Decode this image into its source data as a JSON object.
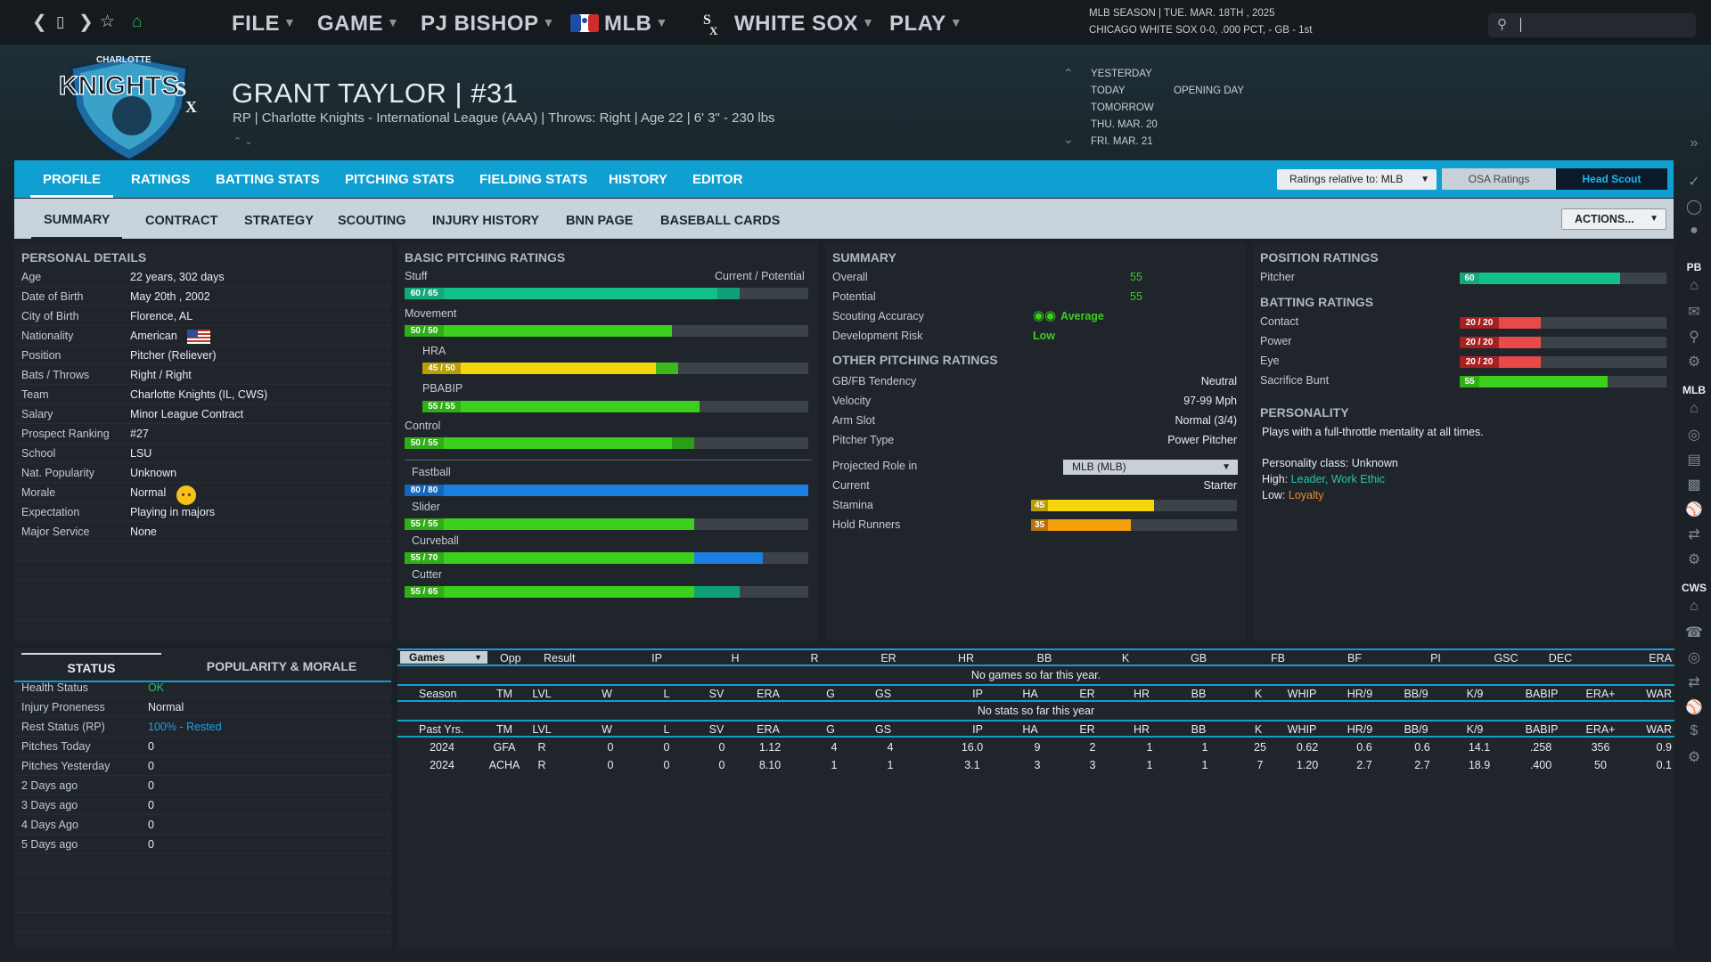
{
  "topbar": {
    "menus": [
      "FILE",
      "GAME",
      "PJ BISHOP",
      "MLB",
      "WHITE SOX",
      "PLAY"
    ],
    "season_line": "MLB SEASON  |  TUE. MAR. 18TH , 2025",
    "team_line": "CHICAGO WHITE SOX  0-0, .000 PCT, - GB - 1st",
    "search_value": ""
  },
  "header": {
    "name": "GRANT TAYLOR  |  #31",
    "sub": "RP | Charlotte Knights - International League (AAA)  |  Throws: Right  |  Age 22  |  6' 3\" - 230 lbs",
    "logo_text": "KNIGHTS",
    "logo_top": "CHARLOTTE"
  },
  "dates": [
    {
      "label": "YESTERDAY",
      "event": ""
    },
    {
      "label": "TODAY",
      "event": "OPENING DAY"
    },
    {
      "label": "TOMORROW",
      "event": ""
    },
    {
      "label": "THU. MAR. 20",
      "event": ""
    },
    {
      "label": "FRI. MAR. 21",
      "event": ""
    }
  ],
  "tabs": [
    "PROFILE",
    "RATINGS",
    "BATTING STATS",
    "PITCHING STATS",
    "FIELDING STATS",
    "HISTORY",
    "EDITOR"
  ],
  "ratings_relative": "Ratings relative to: MLB",
  "osa": "OSA Ratings",
  "head_scout": "Head Scout",
  "subtabs": [
    "SUMMARY",
    "CONTRACT",
    "STRATEGY",
    "SCOUTING",
    "INJURY HISTORY",
    "BNN PAGE",
    "BASEBALL CARDS"
  ],
  "actions": "ACTIONS...",
  "sidebar_labels": [
    "PB",
    "MLB",
    "CWS"
  ],
  "personal": {
    "title": "PERSONAL DETAILS",
    "rows": [
      {
        "label": "Age",
        "value": "22 years, 302 days"
      },
      {
        "label": "Date of Birth",
        "value": "May 20th , 2002"
      },
      {
        "label": "City of Birth",
        "value": "Florence, AL"
      },
      {
        "label": "Nationality",
        "value": "American"
      },
      {
        "label": "Position",
        "value": "Pitcher (Reliever)"
      },
      {
        "label": "Bats / Throws",
        "value": "Right / Right"
      },
      {
        "label": "Team",
        "value": "Charlotte Knights (IL, CWS)"
      },
      {
        "label": "Salary",
        "value": "Minor League Contract"
      },
      {
        "label": "Prospect Ranking",
        "value": "#27"
      },
      {
        "label": "School",
        "value": "LSU"
      },
      {
        "label": "Nat. Popularity",
        "value": "Unknown"
      },
      {
        "label": "Morale",
        "value": "Normal"
      },
      {
        "label": "Expectation",
        "value": "Playing in majors"
      },
      {
        "label": "Major Service",
        "value": "None"
      }
    ]
  },
  "status": {
    "tab1": "STATUS",
    "tab2": "POPULARITY & MORALE",
    "rows": [
      {
        "label": "Health Status",
        "value": "OK",
        "color": "#22c55e"
      },
      {
        "label": "Injury Proneness",
        "value": "Normal",
        "color": "#e8ecef"
      },
      {
        "label": "Rest Status (RP)",
        "value": "100% - Rested",
        "color": "#1da1e6"
      },
      {
        "label": "Pitches Today",
        "value": "0",
        "color": "#e8ecef"
      },
      {
        "label": "Pitches Yesterday",
        "value": "0",
        "color": "#e8ecef"
      },
      {
        "label": "2 Days ago",
        "value": "0",
        "color": "#e8ecef"
      },
      {
        "label": "3 Days ago",
        "value": "0",
        "color": "#e8ecef"
      },
      {
        "label": "4 Days Ago",
        "value": "0",
        "color": "#e8ecef"
      },
      {
        "label": "5 Days ago",
        "value": "0",
        "color": "#e8ecef"
      }
    ]
  },
  "pitching": {
    "title": "BASIC PITCHING RATINGS",
    "cp_label": "Current / Potential",
    "rows": [
      {
        "label": "Stuff",
        "cur": 60,
        "pot": 65,
        "text": "60 / 65",
        "cur_color": "#14c08a",
        "pot_color": "#0fa079",
        "badge": "#14a97a",
        "indent": false
      },
      {
        "label": "Movement",
        "cur": 50,
        "pot": 50,
        "text": "50 / 50",
        "cur_color": "#3ccf1d",
        "pot_color": "#3ccf1d",
        "badge": "#2fae16",
        "indent": false
      },
      {
        "label": "HRA",
        "cur": 45,
        "pot": 50,
        "text": "45 / 50",
        "cur_color": "#f5d60d",
        "pot_color": "#3cb81d",
        "badge": "#b99e08",
        "indent": true
      },
      {
        "label": "PBABIP",
        "cur": 55,
        "pot": 55,
        "text": "55 / 55",
        "cur_color": "#3ccf1d",
        "pot_color": "#3ccf1d",
        "badge": "#2fae16",
        "indent": true
      },
      {
        "label": "Control",
        "cur": 50,
        "pot": 55,
        "text": "50 / 55",
        "cur_color": "#3ccf1d",
        "pot_color": "#2a9e17",
        "badge": "#2fae16",
        "indent": false
      }
    ],
    "pitches": [
      {
        "label": "Fastball",
        "cur": 80,
        "pot": 80,
        "text": "80 / 80",
        "cur_color": "#1a7fe0",
        "pot_color": "#1a7fe0",
        "badge": "#1565b8"
      },
      {
        "label": "Slider",
        "cur": 55,
        "pot": 55,
        "text": "55 / 55",
        "cur_color": "#3ccf1d",
        "pot_color": "#3ccf1d",
        "badge": "#2fae16"
      },
      {
        "label": "Curveball",
        "cur": 55,
        "pot": 70,
        "text": "55 / 70",
        "cur_color": "#3ccf1d",
        "pot_color": "#1a7fe0",
        "badge": "#2fae16"
      },
      {
        "label": "Cutter",
        "cur": 55,
        "pot": 65,
        "text": "55 / 65",
        "cur_color": "#3ccf1d",
        "pot_color": "#0fa079",
        "badge": "#2fae16"
      }
    ]
  },
  "summary": {
    "title": "SUMMARY",
    "overall_label": "Overall",
    "overall": "55",
    "potential_label": "Potential",
    "potential": "55",
    "accuracy_label": "Scouting Accuracy",
    "accuracy": "Average",
    "risk_label": "Development Risk",
    "risk": "Low",
    "other_title": "OTHER PITCHING RATINGS",
    "other": [
      {
        "label": "GB/FB Tendency",
        "value": "Neutral"
      },
      {
        "label": "Velocity",
        "value": "97-99 Mph"
      },
      {
        "label": "Arm Slot",
        "value": "Normal (3/4)"
      },
      {
        "label": "Pitcher Type",
        "value": "Power Pitcher"
      }
    ],
    "role_label": "Projected Role in",
    "role_select": "MLB (MLB)",
    "current_label": "Current",
    "current": "Starter",
    "stamina_label": "Stamina",
    "stamina": 45,
    "stamina_text": "45",
    "hold_label": "Hold Runners",
    "hold": 35,
    "hold_text": "35"
  },
  "position": {
    "title": "POSITION RATINGS",
    "pitcher_label": "Pitcher",
    "pitcher": 60,
    "pitcher_text": "60",
    "batting_title": "BATTING RATINGS",
    "batting": [
      {
        "label": "Contact",
        "cur": 20,
        "pot": 20,
        "text": "20 / 20",
        "color": "#e84a4a",
        "badge": "#a82121"
      },
      {
        "label": "Power",
        "cur": 20,
        "pot": 20,
        "text": "20 / 20",
        "color": "#e84a4a",
        "badge": "#a82121"
      },
      {
        "label": "Eye",
        "cur": 20,
        "pot": 20,
        "text": "20 / 20",
        "color": "#e84a4a",
        "badge": "#a82121"
      },
      {
        "label": "Sacrifice Bunt",
        "cur": 55,
        "pot": 55,
        "text": "55",
        "color": "#3ccf1d",
        "badge": "#2fae16"
      }
    ],
    "personality_title": "PERSONALITY",
    "personality_desc": "Plays with a full-throttle mentality at all times.",
    "class_line": "Personality class: Unknown",
    "high_label": "High:",
    "high_value": "Leader, Work Ethic",
    "low_label": "Low:",
    "low_value": "Loyalty"
  },
  "games": {
    "select": "Games",
    "headers": [
      "Opp",
      "Result",
      "IP",
      "H",
      "R",
      "ER",
      "HR",
      "BB",
      "K",
      "GB",
      "FB",
      "BF",
      "PI",
      "GSC",
      "DEC",
      "ERA"
    ],
    "empty": "No games so far this year."
  },
  "season": {
    "headers": [
      "Season",
      "TM",
      "LVL",
      "W",
      "L",
      "SV",
      "ERA",
      "G",
      "GS",
      "IP",
      "HA",
      "ER",
      "HR",
      "BB",
      "K",
      "WHIP",
      "HR/9",
      "BB/9",
      "K/9",
      "BABIP",
      "ERA+",
      "WAR"
    ],
    "empty": "No stats so far this year"
  },
  "past": {
    "headers": [
      "Past Yrs.",
      "TM",
      "LVL",
      "W",
      "L",
      "SV",
      "ERA",
      "G",
      "GS",
      "IP",
      "HA",
      "ER",
      "HR",
      "BB",
      "K",
      "WHIP",
      "HR/9",
      "BB/9",
      "K/9",
      "BABIP",
      "ERA+",
      "WAR"
    ],
    "rows": [
      [
        "2024",
        "GFA",
        "R",
        "0",
        "0",
        "0",
        "1.12",
        "4",
        "4",
        "16.0",
        "9",
        "2",
        "1",
        "1",
        "25",
        "0.62",
        "0.6",
        "0.6",
        "14.1",
        ".258",
        "356",
        "0.9"
      ],
      [
        "2024",
        "ACHA",
        "R",
        "0",
        "0",
        "0",
        "8.10",
        "1",
        "1",
        "3.1",
        "3",
        "3",
        "1",
        "1",
        "7",
        "1.20",
        "2.7",
        "2.7",
        "18.9",
        ".400",
        "50",
        "0.1"
      ]
    ]
  }
}
